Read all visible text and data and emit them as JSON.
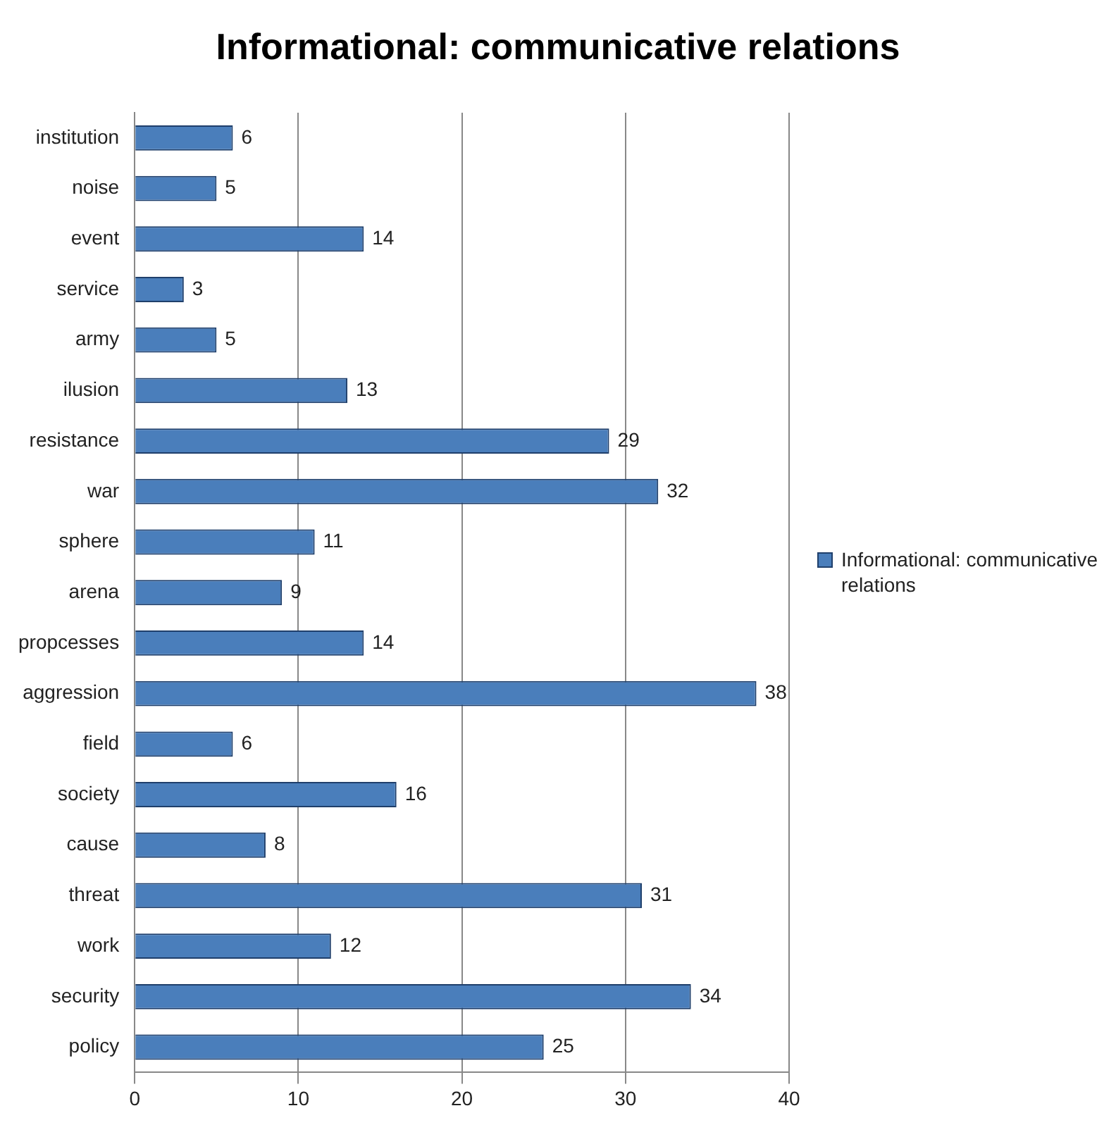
{
  "chart_data": {
    "type": "bar",
    "orientation": "horizontal",
    "title": "Informational: communicative relations",
    "categories": [
      "institution",
      "noise",
      "event",
      "service",
      "army",
      "ilusion",
      "resistance",
      "war",
      "sphere",
      "arena",
      "propcesses",
      "aggression",
      "field",
      "society",
      "cause",
      "threat",
      "work",
      "security",
      "policy"
    ],
    "series": [
      {
        "name": "Informational: communicative relations",
        "color": "#4a7ebb",
        "values": [
          6,
          5,
          14,
          3,
          5,
          13,
          29,
          32,
          11,
          9,
          14,
          38,
          6,
          16,
          8,
          31,
          12,
          34,
          25
        ]
      }
    ],
    "xlim": [
      0,
      40
    ],
    "xticks": [
      0,
      10,
      20,
      30,
      40
    ],
    "grid": "x",
    "legend": "right",
    "data_labels": true
  }
}
